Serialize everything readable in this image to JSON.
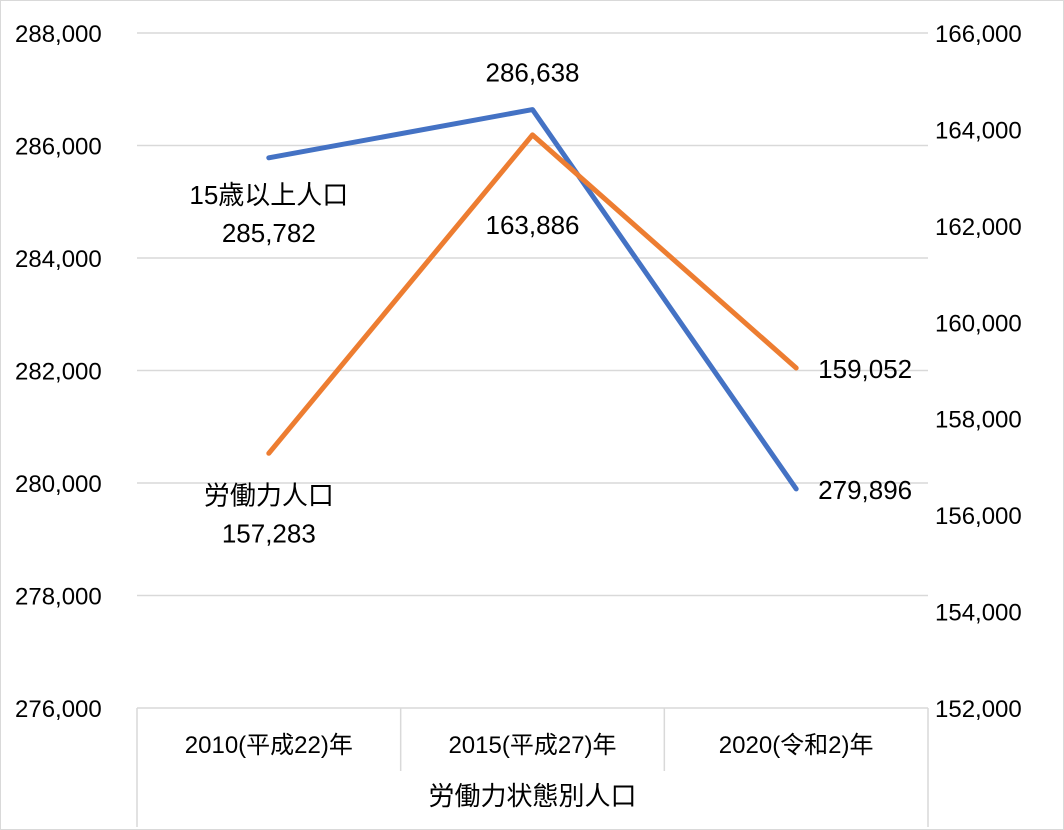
{
  "chart_data": {
    "type": "line",
    "categories": [
      "2010(平成22)年",
      "2015(平成27)年",
      "2020(令和2)年"
    ],
    "xlabel": "労働力状態別人口",
    "y_left": {
      "ylim": [
        276000,
        288000
      ],
      "ticks": [
        "276,000",
        "278,000",
        "280,000",
        "282,000",
        "284,000",
        "286,000",
        "288,000"
      ]
    },
    "y_right": {
      "ylim": [
        152000,
        166000
      ],
      "ticks": [
        "152,000",
        "154,000",
        "156,000",
        "158,000",
        "160,000",
        "162,000",
        "164,000",
        "166,000"
      ]
    },
    "grid": true,
    "series": [
      {
        "name": "15歳以上人口",
        "axis": "left",
        "color": "#4472C4",
        "values": [
          285782,
          286638,
          279896
        ],
        "labels": [
          "285,782",
          "286,638",
          "279,896"
        ]
      },
      {
        "name": "労働力人口",
        "axis": "right",
        "color": "#ED7D31",
        "values": [
          157283,
          163886,
          159052
        ],
        "labels": [
          "157,283",
          "163,886",
          "159,052"
        ]
      }
    ]
  }
}
